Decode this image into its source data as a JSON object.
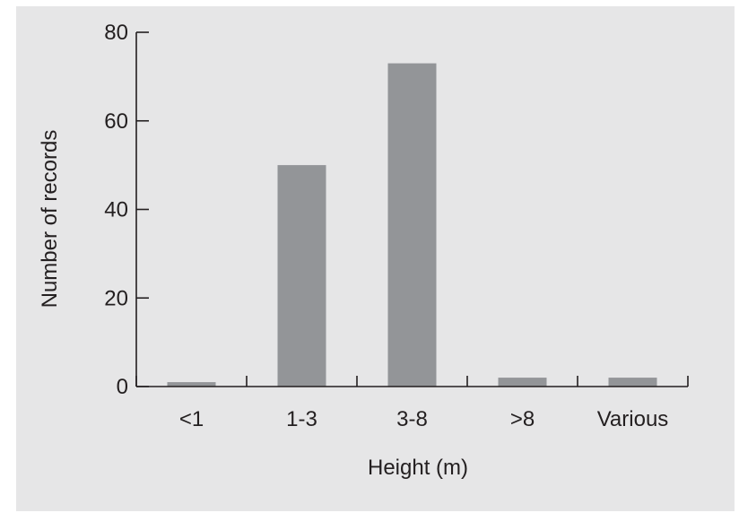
{
  "chart_data": {
    "type": "bar",
    "title": "",
    "xlabel": "Height (m)",
    "ylabel": "Number of records",
    "categories": [
      "<1",
      "1-3",
      "3-8",
      ">8",
      "Various"
    ],
    "values": [
      1,
      50,
      73,
      2,
      2
    ],
    "ylim": [
      0,
      80
    ],
    "yticks": [
      "0",
      "20",
      "40",
      "60",
      "80"
    ],
    "grid": false,
    "legend": "none",
    "colors": {
      "panel_background": "#e6e6e7",
      "bar": "#939598",
      "axis": "#231f20"
    }
  }
}
